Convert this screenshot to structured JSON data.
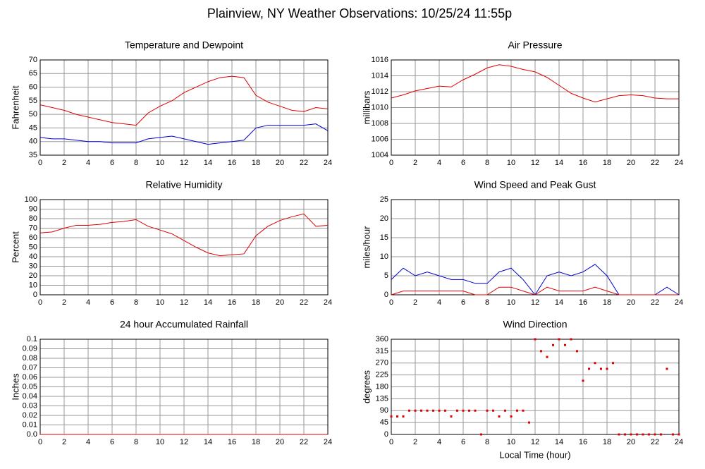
{
  "title": "Plainview, NY Weather Observations: 10/25/24 11:55p",
  "chart_data": [
    {
      "type": "line",
      "title": "Temperature and Dewpoint",
      "ylabel": "Fahrenheit",
      "x": [
        0,
        1,
        2,
        3,
        4,
        5,
        6,
        7,
        8,
        9,
        10,
        11,
        12,
        13,
        14,
        15,
        16,
        17,
        18,
        19,
        20,
        21,
        22,
        23,
        24
      ],
      "series": [
        {
          "color": "#e00000",
          "values": [
            53.5,
            52.5,
            51.5,
            50,
            49,
            48,
            47,
            46.5,
            46,
            50.5,
            53,
            55,
            58,
            60,
            62,
            63.5,
            64,
            63.5,
            57,
            54.5,
            53,
            51.5,
            51,
            52.5,
            52
          ]
        },
        {
          "color": "#0000d0",
          "values": [
            41.5,
            41,
            41,
            40.5,
            40,
            40,
            39.5,
            39.5,
            39.5,
            41,
            41.5,
            42,
            41,
            40,
            39,
            39.5,
            40,
            40.5,
            45,
            46,
            46,
            46,
            46,
            46.5,
            44
          ]
        }
      ],
      "xlim": [
        0,
        24
      ],
      "xticks": [
        0,
        2,
        4,
        6,
        8,
        10,
        12,
        14,
        16,
        18,
        20,
        22,
        24
      ],
      "ylim": [
        35,
        70
      ],
      "yticks": [
        35,
        40,
        45,
        50,
        55,
        60,
        65,
        70
      ],
      "grid": true
    },
    {
      "type": "line",
      "title": "Air Pressure",
      "ylabel": "millibars",
      "x": [
        0,
        1,
        2,
        3,
        4,
        5,
        6,
        7,
        8,
        9,
        10,
        11,
        12,
        13,
        14,
        15,
        16,
        17,
        18,
        19,
        20,
        21,
        22,
        23,
        24
      ],
      "series": [
        {
          "color": "#e00000",
          "values": [
            1011.2,
            1011.6,
            1012.1,
            1012.4,
            1012.7,
            1012.6,
            1013.5,
            1014.2,
            1015,
            1015.4,
            1015.2,
            1014.8,
            1014.5,
            1013.8,
            1012.8,
            1011.8,
            1011.2,
            1010.7,
            1011.1,
            1011.5,
            1011.6,
            1011.5,
            1011.2,
            1011.1,
            1011.1
          ]
        }
      ],
      "xlim": [
        0,
        24
      ],
      "xticks": [
        0,
        2,
        4,
        6,
        8,
        10,
        12,
        14,
        16,
        18,
        20,
        22,
        24
      ],
      "ylim": [
        1004,
        1016
      ],
      "yticks": [
        1004,
        1006,
        1008,
        1010,
        1012,
        1014,
        1016
      ],
      "grid": true
    },
    {
      "type": "line",
      "title": "Relative Humidity",
      "ylabel": "Percent",
      "x": [
        0,
        1,
        2,
        3,
        4,
        5,
        6,
        7,
        8,
        9,
        10,
        11,
        12,
        13,
        14,
        15,
        16,
        17,
        18,
        19,
        20,
        21,
        22,
        23,
        24
      ],
      "series": [
        {
          "color": "#e00000",
          "values": [
            65,
            66,
            70,
            73,
            73,
            74,
            76,
            77,
            79,
            72,
            68,
            64,
            57,
            50,
            44,
            41,
            42,
            43,
            62,
            72,
            78,
            82,
            85,
            72,
            73
          ]
        }
      ],
      "xlim": [
        0,
        24
      ],
      "xticks": [
        0,
        2,
        4,
        6,
        8,
        10,
        12,
        14,
        16,
        18,
        20,
        22,
        24
      ],
      "ylim": [
        0,
        100
      ],
      "yticks": [
        0,
        10,
        20,
        30,
        40,
        50,
        60,
        70,
        80,
        90,
        100
      ],
      "grid": true
    },
    {
      "type": "line",
      "title": "Wind Speed and Peak Gust",
      "ylabel": "miles/hour",
      "x": [
        0,
        1,
        2,
        3,
        4,
        5,
        6,
        7,
        8,
        9,
        10,
        11,
        12,
        13,
        14,
        15,
        16,
        17,
        18,
        19,
        20,
        21,
        22,
        23,
        24
      ],
      "series": [
        {
          "color": "#0000d0",
          "values": [
            4,
            7,
            5,
            6,
            5,
            4,
            4,
            3,
            3,
            6,
            7,
            4,
            0,
            5,
            6,
            5,
            6,
            8,
            5,
            0,
            0,
            0,
            0,
            2,
            0
          ]
        },
        {
          "color": "#e00000",
          "values": [
            0,
            1,
            1,
            1,
            1,
            1,
            1,
            0,
            0,
            2,
            2,
            1,
            0,
            2,
            1,
            1,
            1,
            2,
            1,
            0,
            0,
            0,
            0,
            0,
            0
          ]
        }
      ],
      "xlim": [
        0,
        24
      ],
      "xticks": [
        0,
        2,
        4,
        6,
        8,
        10,
        12,
        14,
        16,
        18,
        20,
        22,
        24
      ],
      "ylim": [
        0,
        25
      ],
      "yticks": [
        0,
        5,
        10,
        15,
        20,
        25
      ],
      "grid": true
    },
    {
      "type": "line",
      "title": "24 hour Accumulated Rainfall",
      "ylabel": "Inches",
      "x": [
        0,
        24
      ],
      "series": [
        {
          "color": "#e00000",
          "values": [
            0,
            0
          ]
        }
      ],
      "xlim": [
        0,
        24
      ],
      "xticks": [
        0,
        2,
        4,
        6,
        8,
        10,
        12,
        14,
        16,
        18,
        20,
        22,
        24
      ],
      "ylim": [
        0,
        0.1
      ],
      "yticks": [
        {
          "value": 0,
          "label": "0.0"
        },
        0.01,
        0.02,
        0.03,
        0.04,
        0.05,
        0.06,
        0.07,
        0.08,
        0.09,
        0.1
      ],
      "grid": true
    },
    {
      "type": "scatter",
      "title": "Wind Direction",
      "ylabel": "degrees",
      "xlabel": "Local Time (hour)",
      "x": [
        0,
        0.5,
        1,
        1.5,
        2,
        2.5,
        3,
        3.5,
        4,
        4.5,
        5,
        5.5,
        6,
        6.5,
        7,
        7.5,
        8,
        8.5,
        9,
        9.5,
        10,
        10.5,
        11,
        11.5,
        12,
        12.5,
        13,
        13.5,
        14,
        14.5,
        15,
        15.5,
        16,
        16.5,
        17,
        17.5,
        18,
        18.5,
        19,
        19.5,
        20,
        20.5,
        21,
        21.5,
        22,
        22.5,
        23,
        23.5,
        24
      ],
      "series": [
        {
          "color": "#e00000",
          "values": [
            68,
            68,
            68,
            90,
            90,
            90,
            90,
            90,
            90,
            90,
            68,
            90,
            90,
            90,
            90,
            0,
            90,
            90,
            68,
            90,
            68,
            90,
            90,
            45,
            360,
            315,
            293,
            338,
            360,
            338,
            360,
            315,
            203,
            248,
            270,
            248,
            248,
            270,
            0,
            0,
            0,
            0,
            0,
            0,
            0,
            0,
            248,
            0,
            0
          ]
        }
      ],
      "xlim": [
        0,
        24
      ],
      "xticks": [
        0,
        2,
        4,
        6,
        8,
        10,
        12,
        14,
        16,
        18,
        20,
        22,
        24
      ],
      "ylim": [
        0,
        360
      ],
      "yticks": [
        0,
        45,
        90,
        135,
        180,
        225,
        270,
        315,
        360
      ],
      "grid": true
    }
  ]
}
